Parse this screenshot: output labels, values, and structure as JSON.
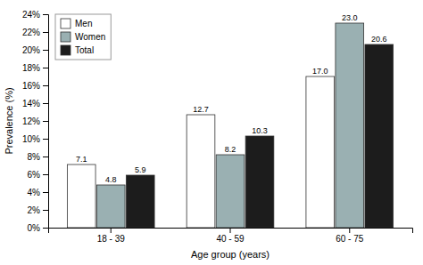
{
  "chart_data": {
    "type": "bar",
    "categories": [
      "18 - 39",
      "40 - 59",
      "60 - 75"
    ],
    "series": [
      {
        "name": "Men",
        "color": "#ffffff",
        "values": [
          7.1,
          12.7,
          17.0
        ],
        "value_labels": [
          "7.1",
          "12.7",
          "17.0"
        ]
      },
      {
        "name": "Women",
        "color": "#9ab0b2",
        "values": [
          4.8,
          8.2,
          23.0
        ],
        "value_labels": [
          "4.8",
          "8.2",
          "23.0"
        ]
      },
      {
        "name": "Total",
        "color": "#1c1c1c",
        "values": [
          5.9,
          10.3,
          20.6
        ],
        "value_labels": [
          "5.9",
          "10.3",
          "20.6"
        ]
      }
    ],
    "xlabel": "Age group (years)",
    "ylabel": "Prevalence (%)",
    "ylim": [
      0,
      24
    ],
    "yticks": [
      {
        "value": 0,
        "label": "0%"
      },
      {
        "value": 2,
        "label": "2%"
      },
      {
        "value": 4,
        "label": "4%"
      },
      {
        "value": 6,
        "label": "6%"
      },
      {
        "value": 8,
        "label": "8%"
      },
      {
        "value": 10,
        "label": "10%"
      },
      {
        "value": 12,
        "label": "12%"
      },
      {
        "value": 14,
        "label": "14%"
      },
      {
        "value": 16,
        "label": "16%"
      },
      {
        "value": 18,
        "label": "18%"
      },
      {
        "value": 20,
        "label": "20%"
      },
      {
        "value": 22,
        "label": "22%"
      },
      {
        "value": 24,
        "label": "24%"
      }
    ],
    "data_labels": true,
    "legend": "upper left",
    "grid": false
  }
}
